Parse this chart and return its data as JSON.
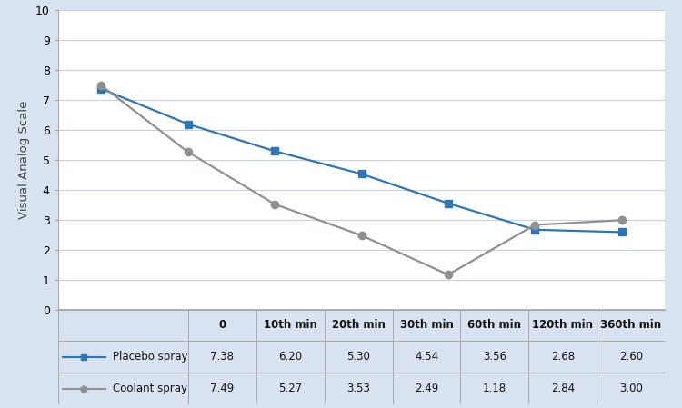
{
  "x_labels": [
    "0",
    "10th min",
    "20th min",
    "30th min",
    "60th min",
    "120th min",
    "360th min"
  ],
  "x_positions": [
    0,
    1,
    2,
    3,
    4,
    5,
    6
  ],
  "placebo_values": [
    7.38,
    6.2,
    5.3,
    4.54,
    3.56,
    2.68,
    2.6
  ],
  "coolant_values": [
    7.49,
    5.27,
    3.53,
    2.49,
    1.18,
    2.84,
    3.0
  ],
  "placebo_label": "Placebo spray",
  "coolant_label": "Coolant spray",
  "placebo_color": "#2E75B6",
  "coolant_color": "#909090",
  "ylabel": "Visual Analog Scale",
  "ylim": [
    0,
    10
  ],
  "yticks": [
    0,
    1,
    2,
    3,
    4,
    5,
    6,
    7,
    8,
    9,
    10
  ],
  "background_color": "#d9e2f0",
  "plot_background": "#ffffff",
  "table_headers": [
    "",
    "0",
    "10th min",
    "20th min",
    "30th min",
    "60th min",
    "120th min",
    "360th min"
  ],
  "table_row1_label": "Placebo spray",
  "table_row1_values": [
    "7.38",
    "6.20",
    "5.30",
    "4.54",
    "3.56",
    "2.68",
    "2.60"
  ],
  "table_row2_label": "Coolant spray",
  "table_row2_values": [
    "7.49",
    "5.27",
    "3.53",
    "2.49",
    "1.18",
    "2.84",
    "3.00"
  ],
  "grid_color": "#c8d0dc",
  "border_color": "#aaaaaa",
  "font_size_table": 8.5,
  "font_size_ylabel": 9.5
}
